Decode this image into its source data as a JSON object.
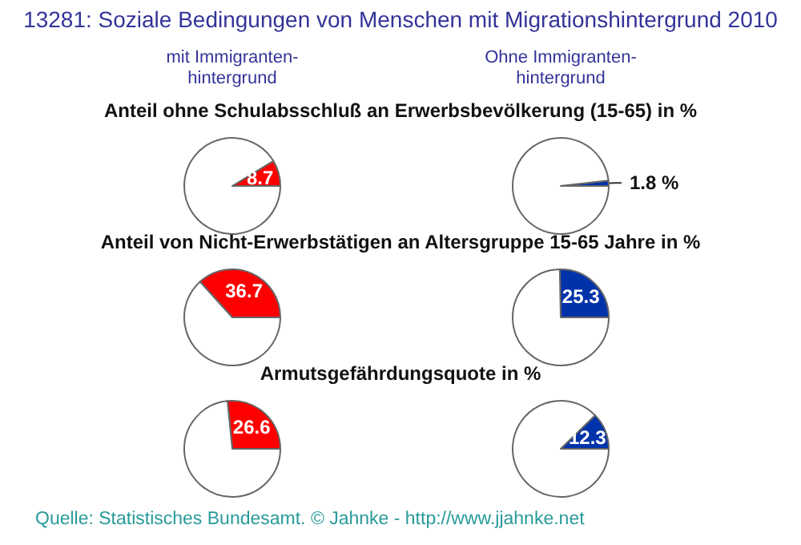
{
  "chart_data": [
    {
      "type": "pie",
      "title": "Anteil ohne Schulabsschluß an Erwerbsbevölkerung (15-65) in %",
      "annotations": [
        "13281: Soziale Bedingungen von Menschen mit Migrationshintergrund 2010",
        "mit Immigranten-\nhintergrund",
        "Quelle: Statistisches Bundesamt. © Jahnke - http://www.jjahnke.net"
      ],
      "categories": [
        null,
        null
      ],
      "values": [
        8.7,
        91.3
      ],
      "colors": [
        "#ff0000",
        "#ffffff"
      ],
      "value_labels": [
        "8.7",
        null
      ]
    },
    {
      "type": "pie",
      "annotations": [
        "Ohne Immigranten-\nhintergrund"
      ],
      "categories": [
        null,
        null
      ],
      "values": [
        1.8,
        98.2
      ],
      "colors": [
        "#0033aa",
        "#ffffff"
      ],
      "value_labels": [
        "1.8 %",
        null
      ]
    },
    {
      "type": "pie",
      "title": "Anteil von Nicht-Erwerbstätigen an Altersgruppe 15-65 Jahre in %",
      "categories": [
        null,
        null
      ],
      "values": [
        36.7,
        63.3
      ],
      "colors": [
        "#ff0000",
        "#ffffff"
      ],
      "value_labels": [
        "36.7",
        null
      ]
    },
    {
      "type": "pie",
      "categories": [
        null,
        null
      ],
      "values": [
        25.3,
        74.7
      ],
      "colors": [
        "#0033aa",
        "#ffffff"
      ],
      "value_labels": [
        "25.3",
        null
      ]
    },
    {
      "type": "pie",
      "title": "Armutsgefährdungsquote in %",
      "categories": [
        null,
        null
      ],
      "values": [
        26.6,
        73.4
      ],
      "colors": [
        "#ff0000",
        "#ffffff"
      ],
      "value_labels": [
        "26.6",
        null
      ]
    },
    {
      "type": "pie",
      "categories": [
        null,
        null
      ],
      "values": [
        12.3,
        87.7
      ],
      "colors": [
        "#0033aa",
        "#ffffff"
      ],
      "value_labels": [
        "12.3",
        null
      ]
    }
  ]
}
